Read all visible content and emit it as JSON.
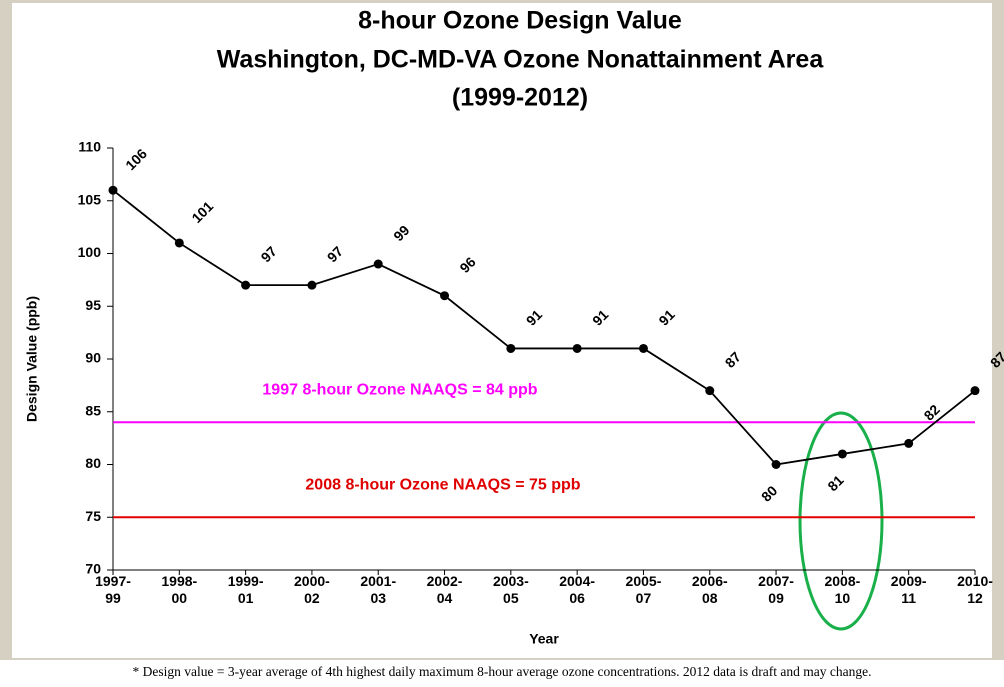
{
  "chart_data": {
    "type": "line",
    "title": [
      "8-hour Ozone Design Value",
      "Washington, DC-MD-VA Ozone Nonattainment Area",
      "(1999-2012)"
    ],
    "x_label": "Year",
    "y_label": "Design Value (ppb)",
    "categories": [
      "1997-99",
      "1998-00",
      "1999-01",
      "2000-02",
      "2001-03",
      "2002-04",
      "2003-05",
      "2004-06",
      "2005-07",
      "2006-08",
      "2007-09",
      "2008-10",
      "2009-11",
      "2010-12"
    ],
    "series": [
      {
        "name": "Design Value",
        "color": "#000000",
        "values": [
          106,
          101,
          97,
          97,
          99,
          96,
          91,
          91,
          91,
          87,
          80,
          81,
          82,
          87
        ]
      }
    ],
    "ylim": [
      70,
      110
    ],
    "yticks": [
      70,
      75,
      80,
      85,
      90,
      95,
      100,
      105,
      110
    ],
    "reference_lines": [
      {
        "value": 84,
        "label": "1997 8-hour Ozone NAAQS = 84 ppb",
        "color": "#ff00ff"
      },
      {
        "value": 75,
        "label": "2008 8-hour Ozone NAAQS = 75 ppb",
        "color": "#e00000"
      }
    ],
    "footnote": "* Design value = 3-year average of 4th highest daily maximum 8-hour average ozone concentrations.   2012 data is draft and may change."
  }
}
